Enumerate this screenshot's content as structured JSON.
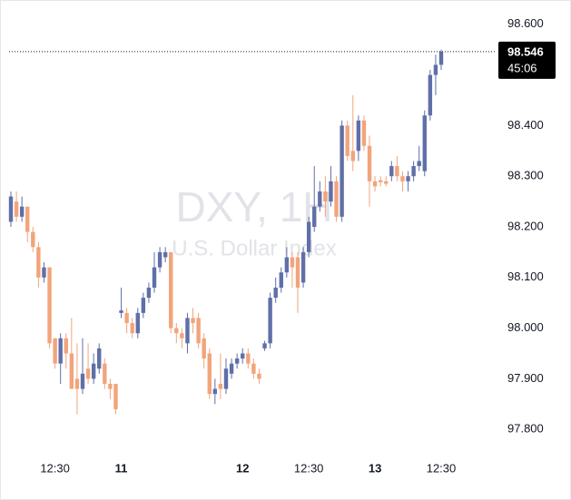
{
  "chart_data": {
    "type": "candlestick",
    "title": "DXY, 1H",
    "subtitle": "U.S. Dollar Index",
    "categories": [
      null,
      null,
      null,
      null,
      null,
      null,
      null,
      null,
      "12:30",
      null,
      null,
      null,
      null,
      null,
      null,
      null,
      null,
      null,
      null,
      null,
      "11",
      null,
      null,
      null,
      null,
      null,
      null,
      null,
      null,
      null,
      null,
      null,
      null,
      null,
      null,
      null,
      null,
      null,
      null,
      null,
      null,
      null,
      "12",
      null,
      null,
      null,
      null,
      null,
      null,
      null,
      null,
      null,
      null,
      null,
      "12:30",
      null,
      null,
      null,
      null,
      null,
      null,
      null,
      null,
      null,
      null,
      null,
      "13",
      null,
      null,
      null,
      null,
      null,
      null,
      null,
      null,
      null,
      null,
      null,
      "12:30"
    ],
    "open": [
      98.21,
      98.25,
      98.22,
      98.24,
      98.19,
      98.16,
      98.1,
      98.12,
      97.98,
      97.93,
      97.98,
      97.95,
      97.9,
      97.88,
      97.92,
      97.9,
      97.92,
      97.93,
      97.89,
      97.89,
      98.03,
      98.03,
      98.01,
      97.99,
      98.03,
      98.06,
      98.08,
      98.12,
      98.14,
      98.15,
      98.0,
      97.99,
      97.97,
      98.02,
      98.02,
      97.98,
      97.95,
      97.87,
      97.89,
      97.88,
      97.91,
      97.93,
      97.94,
      97.95,
      97.93,
      97.91,
      97.96,
      97.97,
      98.06,
      98.08,
      98.11,
      98.14,
      98.14,
      98.09,
      98.15,
      98.2,
      98.24,
      98.27,
      98.25,
      98.29,
      98.22,
      98.4,
      98.35,
      98.35,
      98.41,
      98.36,
      98.29,
      98.292,
      98.29,
      98.3,
      98.32,
      98.3,
      98.29,
      98.3,
      98.32,
      98.31,
      98.42,
      98.5,
      98.52
    ],
    "high": [
      98.27,
      98.27,
      98.26,
      98.24,
      98.2,
      98.17,
      98.13,
      98.12,
      97.98,
      97.99,
      97.99,
      98.02,
      97.97,
      97.98,
      97.97,
      97.95,
      97.97,
      97.94,
      97.9,
      97.89,
      98.08,
      98.04,
      98.02,
      98.04,
      98.07,
      98.09,
      98.15,
      98.16,
      98.16,
      98.15,
      98.01,
      98.0,
      98.03,
      98.04,
      98.03,
      97.99,
      97.96,
      97.9,
      97.95,
      97.94,
      97.94,
      97.95,
      97.96,
      97.96,
      97.94,
      97.92,
      97.975,
      98.07,
      98.1,
      98.12,
      98.16,
      98.15,
      98.15,
      98.16,
      98.22,
      98.32,
      98.29,
      98.3,
      98.32,
      98.3,
      98.41,
      98.41,
      98.46,
      98.42,
      98.42,
      98.38,
      98.3,
      98.3,
      98.3,
      98.33,
      98.34,
      98.31,
      98.31,
      98.33,
      98.36,
      98.43,
      98.51,
      98.54,
      98.55
    ],
    "low": [
      98.2,
      98.21,
      98.21,
      98.17,
      98.15,
      98.08,
      98.09,
      97.96,
      97.92,
      97.89,
      97.92,
      97.88,
      97.83,
      97.87,
      97.89,
      97.89,
      97.91,
      97.88,
      97.86,
      97.83,
      98.02,
      97.99,
      97.98,
      97.98,
      98.02,
      98.05,
      98.07,
      98.11,
      98.13,
      97.99,
      97.97,
      97.96,
      97.95,
      97.99,
      97.96,
      97.92,
      97.86,
      97.85,
      97.86,
      97.87,
      97.9,
      97.92,
      97.93,
      97.92,
      97.9,
      97.89,
      97.955,
      97.96,
      98.05,
      98.07,
      98.1,
      98.08,
      98.03,
      98.08,
      98.14,
      98.19,
      98.23,
      98.22,
      98.24,
      98.21,
      98.21,
      98.33,
      98.31,
      98.33,
      98.35,
      98.24,
      98.27,
      98.28,
      98.28,
      98.29,
      98.29,
      98.27,
      98.27,
      98.29,
      98.31,
      98.3,
      98.41,
      98.46,
      98.51
    ],
    "close": [
      98.26,
      98.22,
      98.24,
      98.19,
      98.16,
      98.1,
      98.12,
      97.97,
      97.93,
      97.98,
      97.95,
      97.88,
      97.88,
      97.91,
      97.9,
      97.93,
      97.96,
      97.89,
      97.88,
      97.84,
      98.035,
      98.01,
      97.99,
      98.03,
      98.06,
      98.08,
      98.12,
      98.15,
      98.15,
      98.0,
      97.99,
      97.98,
      98.02,
      98.01,
      97.97,
      97.94,
      97.87,
      97.88,
      97.88,
      97.92,
      97.93,
      97.94,
      97.95,
      97.93,
      97.91,
      97.9,
      97.97,
      98.06,
      98.08,
      98.11,
      98.14,
      98.12,
      98.08,
      98.15,
      98.21,
      98.24,
      98.27,
      98.25,
      98.29,
      98.22,
      98.4,
      98.34,
      98.33,
      98.41,
      98.36,
      98.29,
      98.28,
      98.288,
      98.285,
      98.32,
      98.3,
      98.29,
      98.3,
      98.32,
      98.33,
      98.42,
      98.5,
      98.52,
      98.546
    ],
    "up_color": "#5f6fa8",
    "down_color": "#f2a47b",
    "ylim": [
      97.752,
      98.648
    ],
    "yticks": [
      {
        "value": 97.8,
        "label": "97.800"
      },
      {
        "value": 97.9,
        "label": "97.900"
      },
      {
        "value": 98.0,
        "label": "98.000"
      },
      {
        "value": 98.1,
        "label": "98.100"
      },
      {
        "value": 98.2,
        "label": "98.200"
      },
      {
        "value": 98.3,
        "label": "98.300"
      },
      {
        "value": 98.4,
        "label": "98.400"
      },
      {
        "value": 98.5,
        "label": "98.500"
      },
      {
        "value": 98.6,
        "label": "98.600"
      }
    ],
    "last_price": {
      "value": 98.546,
      "label": "98.546"
    },
    "countdown": "45:06"
  }
}
